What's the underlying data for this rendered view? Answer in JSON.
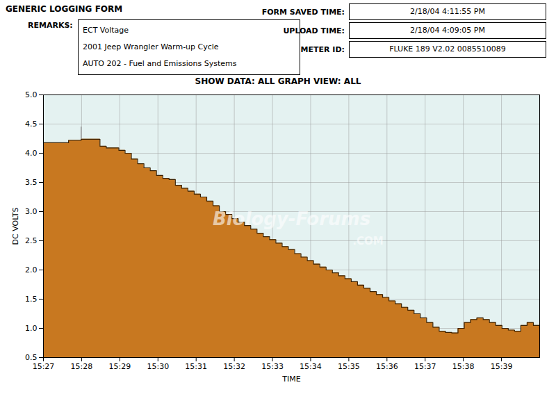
{
  "chart_data": {
    "type": "area",
    "title": "GENERIC LOGGING FORM",
    "subtitle": "SHOW DATA: ALL GRAPH VIEW: ALL",
    "remarks_label": "REMARKS:",
    "remarks": [
      "ECT Voltage",
      "2001 Jeep Wrangler Warm-up Cycle",
      "AUTO 202 - Fuel and Emissions Systems"
    ],
    "fields": [
      {
        "label": "FORM SAVED TIME:",
        "value": "2/18/04 4:11:55 PM"
      },
      {
        "label": "UPLOAD TIME:",
        "value": "2/18/04 4:09:05 PM"
      },
      {
        "label": "METER ID:",
        "value": "FLUKE 189 V2.02 0085510089"
      }
    ],
    "x_label": "TIME",
    "y_label": "DC VOLTS",
    "x": [
      0,
      0.1646,
      0.3291,
      0.4937,
      0.6582,
      0.8228,
      0.9873,
      1.1519,
      1.3165,
      1.481,
      1.6456,
      1.8101,
      1.9747,
      2.1392,
      2.3038,
      2.4684,
      2.6329,
      2.7975,
      2.962,
      3.1266,
      3.2911,
      3.4557,
      3.6203,
      3.7848,
      3.9494,
      4.1139,
      4.2785,
      4.443,
      4.6076,
      4.7722,
      4.9367,
      5.1013,
      5.2658,
      5.4304,
      5.5949,
      5.7595,
      5.9241,
      6.0886,
      6.2532,
      6.4177,
      6.5823,
      6.7468,
      6.9114,
      7.0759,
      7.2405,
      7.4051,
      7.5696,
      7.7342,
      7.8987,
      8.0633,
      8.2278,
      8.3924,
      8.557,
      8.7215,
      8.8861,
      9.0506,
      9.2152,
      9.3797,
      9.5443,
      9.7089,
      9.8734,
      10.038,
      10.2025,
      10.3671,
      10.5316,
      10.6962,
      10.8608,
      11.0253,
      11.1899,
      11.3544,
      11.519,
      11.6835,
      11.8481,
      12.0127,
      12.1772,
      12.3418,
      12.5063,
      12.6709,
      12.8354,
      13
    ],
    "values": [
      4.18,
      4.18,
      4.18,
      4.18,
      4.22,
      4.22,
      4.24,
      4.24,
      4.24,
      4.12,
      4.09,
      4.09,
      4.05,
      4.0,
      3.9,
      3.82,
      3.75,
      3.7,
      3.62,
      3.57,
      3.55,
      3.45,
      3.4,
      3.35,
      3.3,
      3.25,
      3.18,
      3.1,
      3.0,
      2.95,
      2.88,
      2.82,
      2.76,
      2.7,
      2.63,
      2.57,
      2.52,
      2.46,
      2.4,
      2.35,
      2.28,
      2.22,
      2.16,
      2.1,
      2.05,
      2.0,
      1.95,
      1.9,
      1.85,
      1.8,
      1.74,
      1.69,
      1.63,
      1.58,
      1.53,
      1.47,
      1.42,
      1.36,
      1.31,
      1.25,
      1.18,
      1.1,
      1.02,
      0.95,
      0.93,
      0.92,
      1.0,
      1.1,
      1.15,
      1.18,
      1.15,
      1.1,
      1.05,
      1.0,
      0.97,
      0.95,
      1.05,
      1.1,
      1.05,
      1.0
    ],
    "color": "#c87820",
    "line_color": "#3a2000",
    "background": "#e4f2f1",
    "whisker": {
      "x": 0.9873,
      "y_from": 4.24,
      "y_to": 4.45,
      "color": "#888888"
    },
    "annotations": [
      {
        "text": "Biology-Forums"
      },
      {
        "text": ".COM"
      }
    ],
    "xlim": [
      0,
      13
    ],
    "xticks": [
      {
        "value": 0,
        "label": "15:27"
      },
      {
        "value": 1,
        "label": "15:28"
      },
      {
        "value": 2,
        "label": "15:29"
      },
      {
        "value": 3,
        "label": "15:30"
      },
      {
        "value": 4,
        "label": "15:31"
      },
      {
        "value": 5,
        "label": "15:32"
      },
      {
        "value": 6,
        "label": "15:33"
      },
      {
        "value": 7,
        "label": "15:34"
      },
      {
        "value": 8,
        "label": "15:35"
      },
      {
        "value": 9,
        "label": "15:36"
      },
      {
        "value": 10,
        "label": "15:37"
      },
      {
        "value": 11,
        "label": "15:38"
      },
      {
        "value": 12,
        "label": "15:39"
      }
    ],
    "ylim": [
      0.5,
      5.0
    ],
    "yticks": [
      0.5,
      {
        "value": 1,
        "label": "1.0"
      },
      1.5,
      {
        "value": 2,
        "label": "2.0"
      },
      2.5,
      {
        "value": 3,
        "label": "3.0"
      },
      3.5,
      {
        "value": 4,
        "label": "4.0"
      },
      4.5,
      {
        "value": 5,
        "label": "5.0"
      }
    ],
    "grid": true
  }
}
